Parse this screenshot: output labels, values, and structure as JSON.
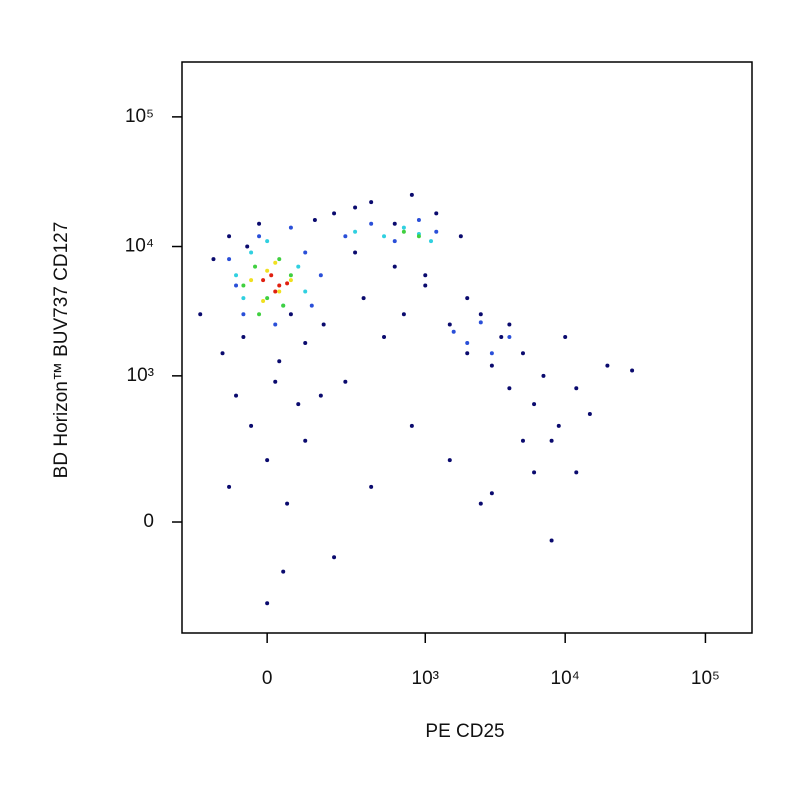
{
  "chart_data": {
    "type": "scatter",
    "scale": "biexponential",
    "xlabel": "PE CD25",
    "ylabel": "BD Horizon™ BUV737 CD127",
    "xlim": [
      -285,
      214800
    ],
    "ylim": [
      -528,
      265000
    ],
    "xticks": [
      0,
      {
        "value": 1000,
        "label": "10³"
      },
      {
        "value": 10000,
        "label": "10⁴"
      },
      {
        "value": 100000,
        "label": "10⁵"
      }
    ],
    "yticks": [
      0,
      {
        "value": 1000,
        "label": "10³"
      },
      {
        "value": 10000,
        "label": "10⁴"
      },
      {
        "value": 100000,
        "label": "10⁵"
      }
    ],
    "series": [
      {
        "color": "#0a0a6e",
        "x": [
          -200,
          -150,
          -120,
          -100,
          -80,
          -60,
          -40,
          -20,
          0,
          20,
          40,
          60,
          80,
          100,
          130,
          160,
          200,
          250,
          300,
          350,
          400,
          500,
          600,
          700,
          800,
          1000,
          1200,
          1500,
          1800,
          2000,
          2500,
          3000,
          3500,
          4000,
          5000,
          6000,
          7000,
          8000,
          9000,
          12000,
          15000,
          20000,
          30000,
          -100,
          0,
          50,
          100,
          200,
          400,
          800,
          1500,
          3000,
          5000,
          8000,
          12000,
          300,
          600,
          1000,
          2000,
          4000,
          -50,
          30,
          150,
          10000,
          6000,
          2500
        ],
        "y": [
          3000,
          8000,
          1500,
          12000,
          700,
          2000,
          400,
          15000,
          200,
          900,
          -150,
          3000,
          600,
          1800,
          16000,
          2500,
          18000,
          900,
          20000,
          4000,
          22000,
          2000,
          15000,
          3000,
          25000,
          6000,
          18000,
          2500,
          12000,
          1500,
          3000,
          1200,
          2000,
          800,
          1500,
          600,
          1000,
          300,
          400,
          800,
          500,
          1200,
          1100,
          100,
          -300,
          50,
          300,
          -100,
          100,
          400,
          200,
          80,
          300,
          -50,
          150,
          9000,
          7000,
          5000,
          4000,
          2500,
          10000,
          1300,
          700,
          2000,
          150,
          50
        ]
      },
      {
        "color": "#2a4fd8",
        "x": [
          -100,
          -60,
          -20,
          20,
          60,
          100,
          150,
          250,
          400,
          600,
          900,
          1200,
          1600,
          2000,
          2500,
          3000,
          4000,
          -80,
          120
        ],
        "y": [
          8000,
          3000,
          12000,
          2500,
          14000,
          9000,
          6000,
          12000,
          15000,
          11000,
          16000,
          13000,
          2200,
          1800,
          2600,
          1500,
          2000,
          5000,
          3500
        ]
      },
      {
        "color": "#30d0e0",
        "x": [
          -80,
          -40,
          0,
          40,
          80,
          300,
          500,
          700,
          900,
          1100,
          -60,
          100
        ],
        "y": [
          6000,
          9000,
          11000,
          3500,
          7000,
          13000,
          12000,
          14000,
          12500,
          11000,
          4000,
          4500
        ]
      },
      {
        "color": "#40d040",
        "x": [
          -60,
          -30,
          0,
          30,
          60,
          -20,
          40,
          700,
          900
        ],
        "y": [
          5000,
          7000,
          4000,
          8000,
          6000,
          3000,
          3500,
          13000,
          12000
        ]
      },
      {
        "color": "#f0e020",
        "x": [
          -40,
          0,
          30,
          60,
          -10,
          20
        ],
        "y": [
          5500,
          6500,
          4500,
          5500,
          3800,
          7500
        ]
      },
      {
        "color": "#e02010",
        "x": [
          -10,
          10,
          30,
          50,
          20
        ],
        "y": [
          5500,
          6000,
          5000,
          5200,
          4500
        ]
      }
    ]
  }
}
